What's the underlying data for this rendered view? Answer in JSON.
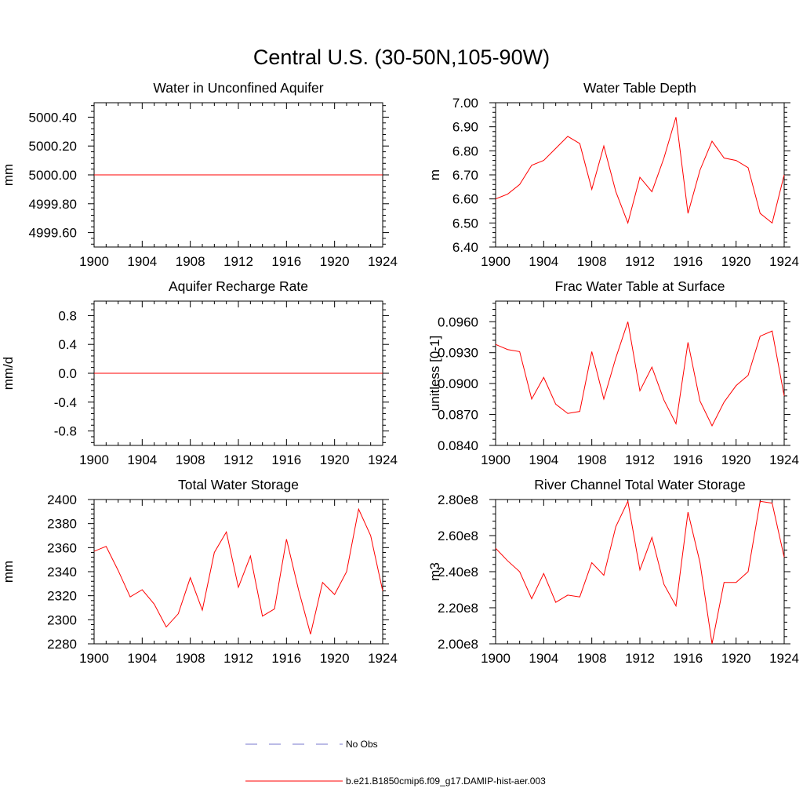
{
  "figure": {
    "title": "Central U.S. (30-50N,105-90W)"
  },
  "colors": {
    "model": "#ff0000",
    "obs": "#7777cc",
    "axis": "#000000"
  },
  "legend": [
    {
      "label": "No Obs",
      "style": "dashed"
    },
    {
      "label": "b.e21.B1850cmip6.f09_g17.DAMIP-hist-aer.003",
      "style": "solid"
    }
  ],
  "chart_data": [
    {
      "type": "line",
      "title": "Water in Unconfined Aquifer",
      "ylabel": "mm",
      "xlim": [
        1900,
        1924
      ],
      "ylim": [
        4999.5,
        5000.5
      ],
      "xticks": [
        "1900",
        "1904",
        "1908",
        "1912",
        "1916",
        "1920",
        "1924"
      ],
      "yticks": [
        {
          "value": 4999.6,
          "label": "4999.60"
        },
        {
          "value": 4999.8,
          "label": "4999.80"
        },
        {
          "value": 5000.0,
          "label": "5000.00"
        },
        {
          "value": 5000.2,
          "label": "5000.20"
        },
        {
          "value": 5000.4,
          "label": "5000.40"
        }
      ],
      "series": [
        {
          "x": [
            1900,
            1901,
            1902,
            1903,
            1904,
            1905,
            1906,
            1907,
            1908,
            1909,
            1910,
            1911,
            1912,
            1913,
            1914,
            1915,
            1916,
            1917,
            1918,
            1919,
            1920,
            1921,
            1922,
            1923,
            1924
          ],
          "values": [
            5000,
            5000,
            5000,
            5000,
            5000,
            5000,
            5000,
            5000,
            5000,
            5000,
            5000,
            5000,
            5000,
            5000,
            5000,
            5000,
            5000,
            5000,
            5000,
            5000,
            5000,
            5000,
            5000,
            5000,
            5000
          ]
        }
      ]
    },
    {
      "type": "line",
      "title": "Water Table Depth",
      "ylabel": "m",
      "xlim": [
        1900,
        1924
      ],
      "ylim": [
        6.4,
        7.0
      ],
      "xticks": [
        "1900",
        "1904",
        "1908",
        "1912",
        "1916",
        "1920",
        "1924"
      ],
      "yticks": [
        {
          "value": 6.4,
          "label": "6.40"
        },
        {
          "value": 6.5,
          "label": "6.50"
        },
        {
          "value": 6.6,
          "label": "6.60"
        },
        {
          "value": 6.7,
          "label": "6.70"
        },
        {
          "value": 6.8,
          "label": "6.80"
        },
        {
          "value": 6.9,
          "label": "6.90"
        },
        {
          "value": 7.0,
          "label": "7.00"
        }
      ],
      "series": [
        {
          "x": [
            1900,
            1901,
            1902,
            1903,
            1904,
            1905,
            1906,
            1907,
            1908,
            1909,
            1910,
            1911,
            1912,
            1913,
            1914,
            1915,
            1916,
            1917,
            1918,
            1919,
            1920,
            1921,
            1922,
            1923,
            1924
          ],
          "values": [
            6.6,
            6.62,
            6.66,
            6.74,
            6.76,
            6.81,
            6.86,
            6.83,
            6.64,
            6.82,
            6.63,
            6.5,
            6.69,
            6.63,
            6.77,
            6.94,
            6.54,
            6.72,
            6.84,
            6.77,
            6.76,
            6.73,
            6.54,
            6.5,
            6.7
          ]
        }
      ]
    },
    {
      "type": "line",
      "title": "Aquifer Recharge Rate",
      "ylabel": "mm/d",
      "xlim": [
        1900,
        1924
      ],
      "ylim": [
        -1.0,
        1.0
      ],
      "xticks": [
        "1900",
        "1904",
        "1908",
        "1912",
        "1916",
        "1920",
        "1924"
      ],
      "yticks": [
        {
          "value": -0.8,
          "label": "-0.8"
        },
        {
          "value": -0.4,
          "label": "-0.4"
        },
        {
          "value": 0.0,
          "label": "0.0"
        },
        {
          "value": 0.4,
          "label": "0.4"
        },
        {
          "value": 0.8,
          "label": "0.8"
        }
      ],
      "series": [
        {
          "x": [
            1900,
            1901,
            1902,
            1903,
            1904,
            1905,
            1906,
            1907,
            1908,
            1909,
            1910,
            1911,
            1912,
            1913,
            1914,
            1915,
            1916,
            1917,
            1918,
            1919,
            1920,
            1921,
            1922,
            1923,
            1924
          ],
          "values": [
            0,
            0,
            0,
            0,
            0,
            0,
            0,
            0,
            0,
            0,
            0,
            0,
            0,
            0,
            0,
            0,
            0,
            0,
            0,
            0,
            0,
            0,
            0,
            0,
            0
          ]
        }
      ]
    },
    {
      "type": "line",
      "title": "Frac Water Table at Surface",
      "ylabel": "unitless [0-1]",
      "xlim": [
        1900,
        1924
      ],
      "ylim": [
        0.084,
        0.098
      ],
      "xticks": [
        "1900",
        "1904",
        "1908",
        "1912",
        "1916",
        "1920",
        "1924"
      ],
      "yticks": [
        {
          "value": 0.084,
          "label": "0.0840"
        },
        {
          "value": 0.087,
          "label": "0.0870"
        },
        {
          "value": 0.09,
          "label": "0.0900"
        },
        {
          "value": 0.093,
          "label": "0.0930"
        },
        {
          "value": 0.096,
          "label": "0.0960"
        }
      ],
      "series": [
        {
          "x": [
            1900,
            1901,
            1902,
            1903,
            1904,
            1905,
            1906,
            1907,
            1908,
            1909,
            1910,
            1911,
            1912,
            1913,
            1914,
            1915,
            1916,
            1917,
            1918,
            1919,
            1920,
            1921,
            1922,
            1923,
            1924
          ],
          "values": [
            0.0938,
            0.0933,
            0.0931,
            0.0885,
            0.0906,
            0.088,
            0.0871,
            0.0873,
            0.0931,
            0.0885,
            0.0925,
            0.096,
            0.0893,
            0.0916,
            0.0884,
            0.0861,
            0.094,
            0.0883,
            0.0859,
            0.0882,
            0.0898,
            0.0908,
            0.0946,
            0.0951,
            0.0888
          ]
        }
      ]
    },
    {
      "type": "line",
      "title": "Total Water Storage",
      "ylabel": "mm",
      "xlim": [
        1900,
        1924
      ],
      "ylim": [
        2280,
        2400
      ],
      "xticks": [
        "1900",
        "1904",
        "1908",
        "1912",
        "1916",
        "1920",
        "1924"
      ],
      "yticks": [
        {
          "value": 2280,
          "label": "2280"
        },
        {
          "value": 2300,
          "label": "2300"
        },
        {
          "value": 2320,
          "label": "2320"
        },
        {
          "value": 2340,
          "label": "2340"
        },
        {
          "value": 2360,
          "label": "2360"
        },
        {
          "value": 2380,
          "label": "2380"
        },
        {
          "value": 2400,
          "label": "2400"
        }
      ],
      "series": [
        {
          "x": [
            1900,
            1901,
            1902,
            1903,
            1904,
            1905,
            1906,
            1907,
            1908,
            1909,
            1910,
            1911,
            1912,
            1913,
            1914,
            1915,
            1916,
            1917,
            1918,
            1919,
            1920,
            1921,
            1922,
            1923,
            1924
          ],
          "values": [
            2357,
            2361,
            2341,
            2319,
            2325,
            2313,
            2294,
            2305,
            2335,
            2308,
            2356,
            2373,
            2327,
            2353,
            2303,
            2309,
            2367,
            2325,
            2288,
            2331,
            2321,
            2340,
            2392,
            2370,
            2324
          ]
        }
      ]
    },
    {
      "type": "line",
      "title": "River Channel Total Water Storage",
      "ylabel": "m3",
      "xlim": [
        1900,
        1924
      ],
      "ylim": [
        200000000,
        280000000
      ],
      "xticks": [
        "1900",
        "1904",
        "1908",
        "1912",
        "1916",
        "1920",
        "1924"
      ],
      "yticks": [
        {
          "value": 200000000,
          "label": "2.00e8"
        },
        {
          "value": 220000000,
          "label": "2.20e8"
        },
        {
          "value": 240000000,
          "label": "2.40e8"
        },
        {
          "value": 260000000,
          "label": "2.60e8"
        },
        {
          "value": 280000000,
          "label": "2.80e8"
        }
      ],
      "series": [
        {
          "x": [
            1900,
            1901,
            1902,
            1903,
            1904,
            1905,
            1906,
            1907,
            1908,
            1909,
            1910,
            1911,
            1912,
            1913,
            1914,
            1915,
            1916,
            1917,
            1918,
            1919,
            1920,
            1921,
            1922,
            1923,
            1924
          ],
          "values": [
            253000000,
            246000000,
            240000000,
            225000000,
            239000000,
            223000000,
            227000000,
            226000000,
            245000000,
            238000000,
            265000000,
            279000000,
            241000000,
            259000000,
            233000000,
            221000000,
            273000000,
            245000000,
            200000000,
            234000000,
            234000000,
            240000000,
            279000000,
            278000000,
            248000000
          ]
        }
      ]
    }
  ]
}
